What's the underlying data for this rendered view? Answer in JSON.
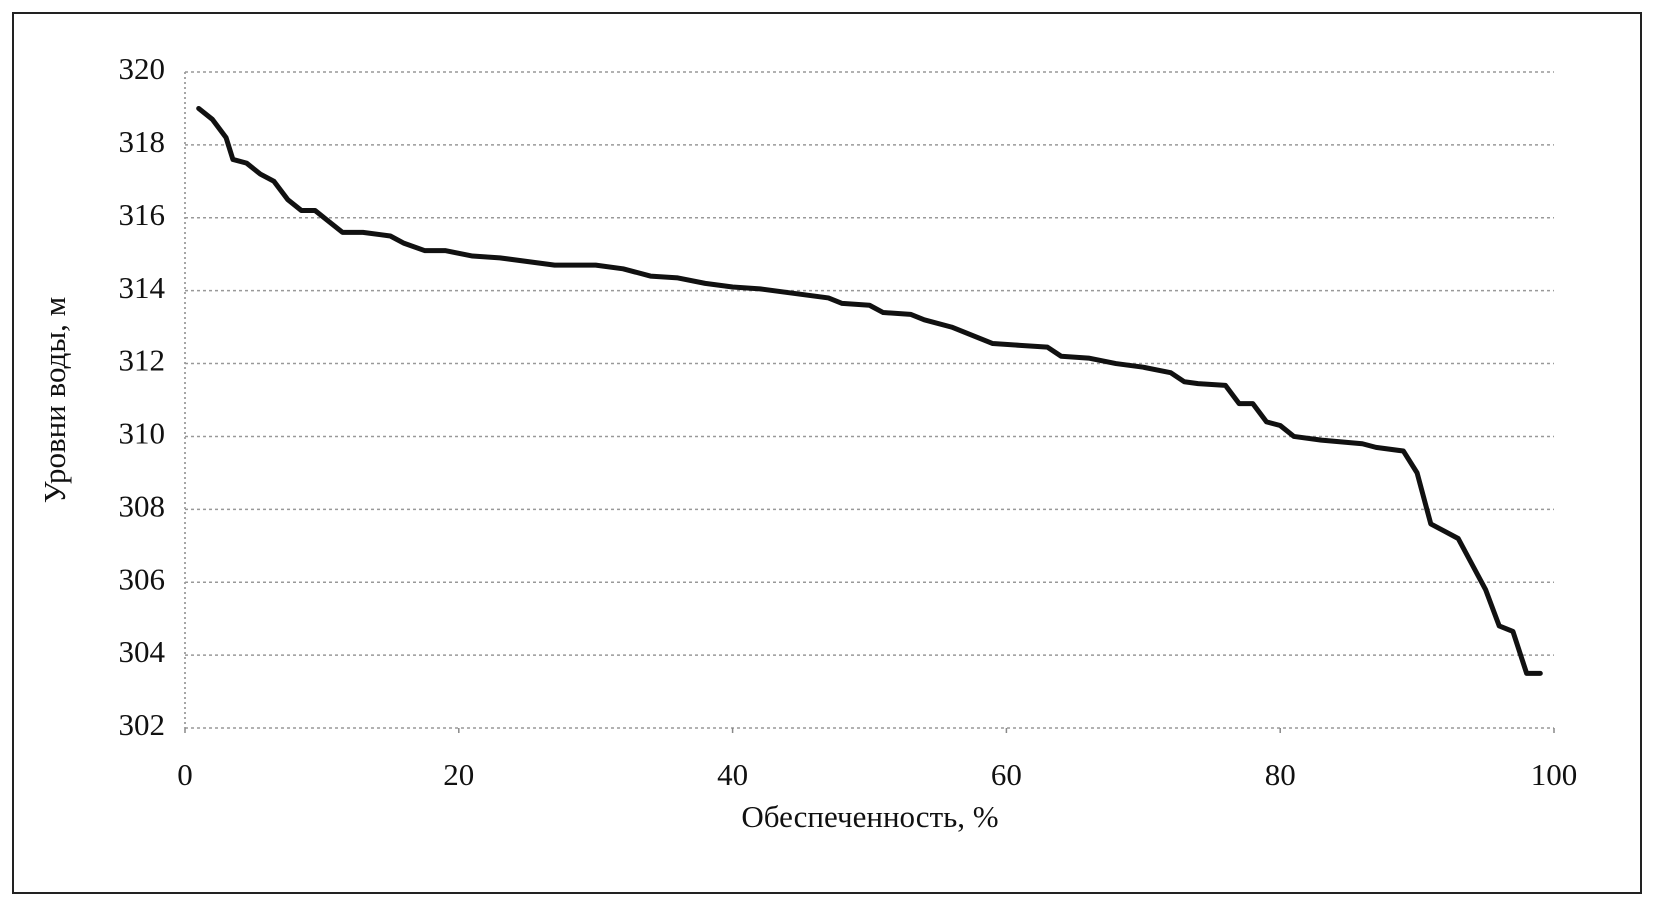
{
  "chart_data": {
    "type": "line",
    "xlabel": "Обеспеченность, %",
    "ylabel": "Уровни воды, м",
    "x": [
      1,
      2,
      3,
      3.5,
      4.5,
      5.5,
      6.5,
      7.5,
      8.5,
      9.5,
      10.5,
      11.5,
      13,
      15,
      16,
      17.5,
      19,
      21,
      23,
      25,
      27,
      30,
      32,
      34,
      36,
      38,
      40,
      42,
      45,
      47,
      48,
      50,
      51,
      53,
      54,
      56,
      58,
      59,
      61,
      63,
      64,
      66,
      68,
      70,
      72,
      73,
      74,
      76,
      77,
      78,
      79,
      80,
      81,
      83,
      86,
      87,
      89,
      90,
      91,
      92,
      93,
      94,
      95,
      96,
      97,
      98,
      99
    ],
    "values": [
      319.0,
      318.7,
      318.2,
      317.6,
      317.5,
      317.2,
      317.0,
      316.5,
      316.2,
      316.2,
      315.9,
      315.6,
      315.6,
      315.5,
      315.3,
      315.1,
      315.1,
      314.95,
      314.9,
      314.8,
      314.7,
      314.7,
      314.6,
      314.4,
      314.35,
      314.2,
      314.1,
      314.05,
      313.9,
      313.8,
      313.65,
      313.6,
      313.4,
      313.35,
      313.2,
      313.0,
      312.7,
      312.55,
      312.5,
      312.45,
      312.2,
      312.15,
      312.0,
      311.9,
      311.75,
      311.5,
      311.45,
      311.4,
      310.9,
      310.9,
      310.4,
      310.3,
      310.0,
      309.9,
      309.8,
      309.7,
      309.6,
      309.0,
      307.6,
      307.4,
      307.2,
      306.5,
      305.8,
      304.8,
      304.65,
      303.5,
      303.5
    ],
    "color": "#111111",
    "xlim": [
      0,
      100
    ],
    "xticks": [
      0,
      20,
      40,
      60,
      80,
      100
    ],
    "ylim": [
      302,
      320
    ],
    "yticks": [
      302,
      304,
      306,
      308,
      310,
      312,
      314,
      316,
      318,
      320
    ],
    "grid": true
  }
}
